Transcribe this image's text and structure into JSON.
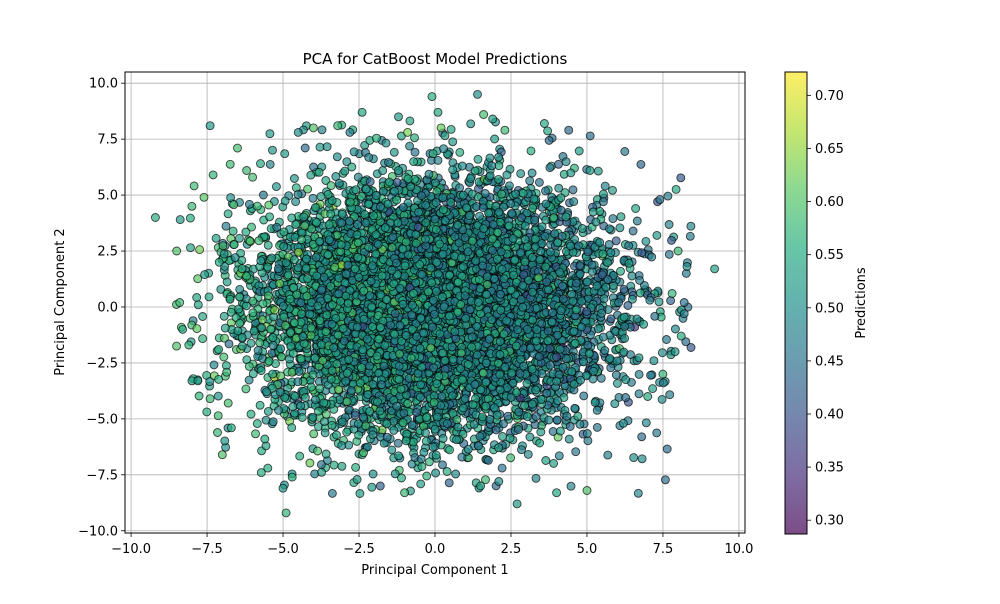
{
  "chart_data": {
    "type": "scatter",
    "title": "PCA for CatBoost Model Predictions",
    "xlabel": "Principal Component 1",
    "ylabel": "Principal Component 2",
    "xlim": [
      -10.2,
      10.2
    ],
    "ylim": [
      -10.1,
      10.5
    ],
    "xticks": [
      -10.0,
      -7.5,
      -5.0,
      -2.5,
      0.0,
      2.5,
      5.0,
      7.5,
      10.0
    ],
    "yticks": [
      -10.0,
      -7.5,
      -5.0,
      -2.5,
      0.0,
      2.5,
      5.0,
      7.5,
      10.0
    ],
    "xtick_labels": [
      "−10.0",
      "−7.5",
      "−5.0",
      "−2.5",
      "0.0",
      "2.5",
      "5.0",
      "7.5",
      "10.0"
    ],
    "ytick_labels": [
      "−10.0",
      "−7.5",
      "−5.0",
      "−2.5",
      "0.0",
      "2.5",
      "5.0",
      "7.5",
      "10.0"
    ],
    "grid": true,
    "colormap": "viridis",
    "marker_alpha": 0.7,
    "marker_edge_color": "#000000",
    "colorbar": {
      "label": "Predictions",
      "range": [
        0.287,
        0.722
      ],
      "ticks": [
        0.3,
        0.35,
        0.4,
        0.45,
        0.5,
        0.55,
        0.6,
        0.65,
        0.7
      ],
      "tick_labels": [
        "0.30",
        "0.35",
        "0.40",
        "0.45",
        "0.50",
        "0.55",
        "0.60",
        "0.65",
        "0.70"
      ]
    },
    "points": [
      {
        "x": -9.2,
        "y": 4.0,
        "value": 0.56
      },
      {
        "x": -8.5,
        "y": 2.5,
        "value": 0.6
      },
      {
        "x": -8.4,
        "y": 0.2,
        "value": 0.58
      },
      {
        "x": -8.3,
        "y": -1.0,
        "value": 0.55
      },
      {
        "x": -8.1,
        "y": -1.7,
        "value": 0.57
      },
      {
        "x": -8.0,
        "y": -3.3,
        "value": 0.54
      },
      {
        "x": -8.0,
        "y": 4.5,
        "value": 0.58
      },
      {
        "x": -7.8,
        "y": -3.3,
        "value": 0.53
      },
      {
        "x": -7.6,
        "y": 4.9,
        "value": 0.61
      },
      {
        "x": -7.4,
        "y": 8.1,
        "value": 0.52
      },
      {
        "x": -7.4,
        "y": -4.1,
        "value": 0.58
      },
      {
        "x": -7.0,
        "y": -6.6,
        "value": 0.6
      },
      {
        "x": -7.3,
        "y": 5.9,
        "value": 0.57
      },
      {
        "x": -7.1,
        "y": 2.0,
        "value": 0.55
      },
      {
        "x": -6.7,
        "y": -5.4,
        "value": 0.56
      },
      {
        "x": -6.5,
        "y": 7.1,
        "value": 0.59
      },
      {
        "x": -6.2,
        "y": 6.1,
        "value": 0.58
      },
      {
        "x": -5.5,
        "y": -7.2,
        "value": 0.55
      },
      {
        "x": -5.0,
        "y": -8.1,
        "value": 0.52
      },
      {
        "x": -4.9,
        "y": -9.2,
        "value": 0.57
      },
      {
        "x": -4.7,
        "y": -7.6,
        "value": 0.56
      },
      {
        "x": -4.5,
        "y": 7.8,
        "value": 0.5
      },
      {
        "x": -4.0,
        "y": 8.0,
        "value": 0.6
      },
      {
        "x": -3.2,
        "y": 8.1,
        "value": 0.58
      },
      {
        "x": -2.8,
        "y": 7.8,
        "value": 0.47
      },
      {
        "x": -2.4,
        "y": 8.7,
        "value": 0.55
      },
      {
        "x": -1.8,
        "y": -8.0,
        "value": 0.42
      },
      {
        "x": -1.2,
        "y": 8.5,
        "value": 0.52
      },
      {
        "x": -1.0,
        "y": -8.3,
        "value": 0.58
      },
      {
        "x": -0.9,
        "y": 7.8,
        "value": 0.63
      },
      {
        "x": -0.1,
        "y": 9.4,
        "value": 0.56
      },
      {
        "x": 0.1,
        "y": 8.7,
        "value": 0.55
      },
      {
        "x": 0.2,
        "y": 8.0,
        "value": 0.62
      },
      {
        "x": 1.4,
        "y": 9.5,
        "value": 0.5
      },
      {
        "x": 1.6,
        "y": 8.6,
        "value": 0.59
      },
      {
        "x": 1.9,
        "y": 8.4,
        "value": 0.54
      },
      {
        "x": 2.3,
        "y": 7.9,
        "value": 0.58
      },
      {
        "x": 1.5,
        "y": -8.0,
        "value": 0.54
      },
      {
        "x": 2.1,
        "y": -7.8,
        "value": 0.5
      },
      {
        "x": 2.7,
        "y": -8.8,
        "value": 0.52
      },
      {
        "x": 3.6,
        "y": 8.2,
        "value": 0.55
      },
      {
        "x": 4.4,
        "y": 7.9,
        "value": 0.43
      },
      {
        "x": 4.0,
        "y": -8.3,
        "value": 0.55
      },
      {
        "x": 5.0,
        "y": -8.2,
        "value": 0.6
      },
      {
        "x": 5.1,
        "y": 6.1,
        "value": 0.53
      },
      {
        "x": 6.6,
        "y": 4.4,
        "value": 0.55
      },
      {
        "x": 6.8,
        "y": -5.8,
        "value": 0.44
      },
      {
        "x": 7.3,
        "y": 3.2,
        "value": 0.52
      },
      {
        "x": 7.4,
        "y": 4.8,
        "value": 0.45
      },
      {
        "x": 7.5,
        "y": -3.0,
        "value": 0.57
      },
      {
        "x": 7.8,
        "y": 0.6,
        "value": 0.57
      },
      {
        "x": 8.0,
        "y": 2.5,
        "value": 0.58
      },
      {
        "x": 8.1,
        "y": -1.3,
        "value": 0.55
      },
      {
        "x": 8.2,
        "y": 0.2,
        "value": 0.45
      },
      {
        "x": 8.2,
        "y": -0.3,
        "value": 0.47
      },
      {
        "x": 9.2,
        "y": 1.7,
        "value": 0.53
      },
      {
        "x": 7.9,
        "y": -2.0,
        "value": 0.52
      },
      {
        "x": 7.0,
        "y": -4.0,
        "value": 0.55
      },
      {
        "x": 6.2,
        "y": -5.2,
        "value": 0.5
      },
      {
        "x": -6.0,
        "y": 5.8,
        "value": 0.59
      },
      {
        "x": -5.6,
        "y": -5.9,
        "value": 0.55
      },
      {
        "x": 5.6,
        "y": 5.4,
        "value": 0.48
      }
    ],
    "cloud": {
      "count": 9000,
      "x_center": 0.0,
      "y_center": 0.0,
      "x_sd": 2.8,
      "y_sd": 2.7,
      "value_mean_left": 0.55,
      "value_mean_right": 0.47,
      "value_sd": 0.04
    }
  }
}
